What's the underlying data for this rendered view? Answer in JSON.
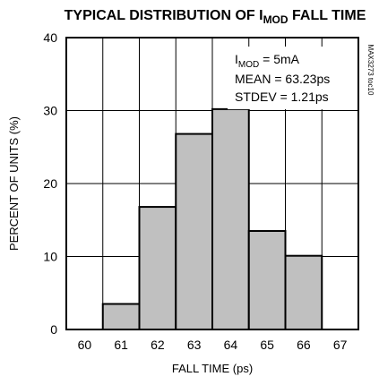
{
  "chart_data": {
    "type": "bar",
    "title_prefix": "TYPICAL DISTRIBUTION OF I",
    "title_sub": "MOD",
    "title_suffix": " FALL TIME",
    "xlabel": "FALL TIME (ps)",
    "ylabel": "PERCENT OF UNITS (%)",
    "x_ticks": [
      "60",
      "61",
      "62",
      "63",
      "64",
      "65",
      "66",
      "67"
    ],
    "y_ticks": [
      "0",
      "10",
      "20",
      "30",
      "40"
    ],
    "xlim": [
      59.5,
      67.5
    ],
    "ylim": [
      0,
      40
    ],
    "grid": true,
    "bars": [
      {
        "x": 61,
        "value": 3.5
      },
      {
        "x": 62,
        "value": 16.8
      },
      {
        "x": 63,
        "value": 26.8
      },
      {
        "x": 64,
        "value": 30.2
      },
      {
        "x": 65,
        "value": 13.5
      },
      {
        "x": 66,
        "value": 10.1
      }
    ],
    "bar_color": "#c0c0c0",
    "annotations": {
      "line1_prefix": "I",
      "line1_sub": "MOD",
      "line1_suffix": " = 5mA",
      "line2": "MEAN = 63.23ps",
      "line3": "STDEV = 1.21ps"
    },
    "figure_id": "MAX3273 toc10"
  }
}
